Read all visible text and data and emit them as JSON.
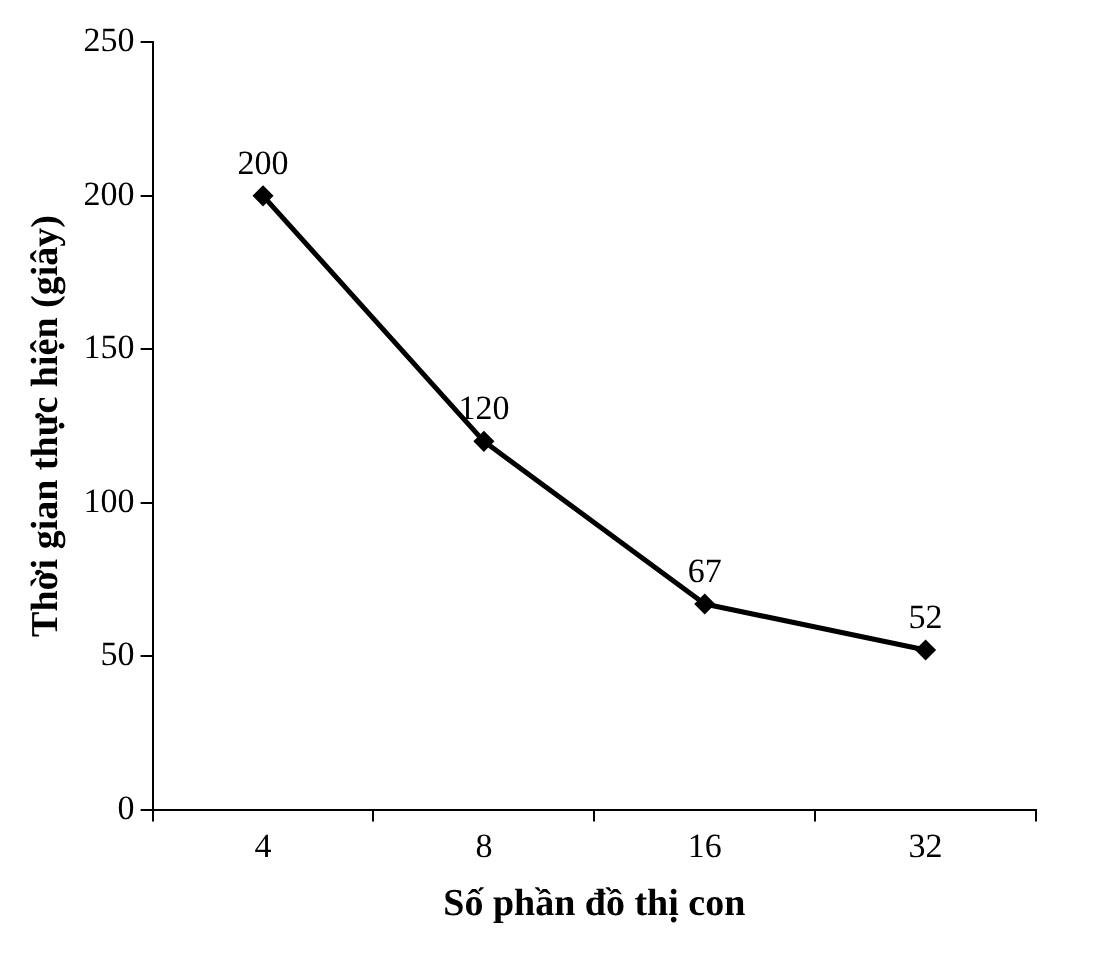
{
  "chart_data": {
    "type": "line",
    "xlabel": "Số phần đồ thị con",
    "ylabel": "Thời gian thực hiện (giây)",
    "categories": [
      "4",
      "8",
      "16",
      "32"
    ],
    "series": [
      {
        "color": "#000000",
        "values": [
          200,
          120,
          67,
          52
        ]
      }
    ],
    "ylim": [
      0,
      250
    ],
    "yticks": [
      0,
      50,
      100,
      150,
      200,
      250
    ],
    "grid": false,
    "legend": false,
    "marker": "diamond",
    "line_style": "solid",
    "data_labels": true
  }
}
